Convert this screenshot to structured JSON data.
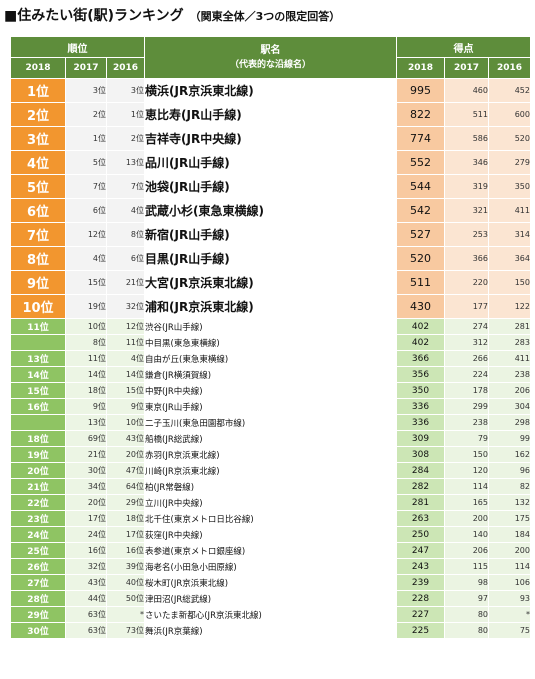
{
  "title": {
    "main": "■住みたい街(駅)ランキング",
    "sub": "（関東全体／3つの限定回答）"
  },
  "headers": {
    "rank_group": "順位",
    "station": "駅名",
    "station_sub": "（代表的な沿線名）",
    "score_group": "得点",
    "years": [
      "2018",
      "2017",
      "2016"
    ]
  },
  "top_rows": [
    {
      "r18": "1位",
      "r17": "3位",
      "r16": "3位",
      "station": "横浜(JR京浜東北線)",
      "s18": "995",
      "s17": "460",
      "s16": "452"
    },
    {
      "r18": "2位",
      "r17": "2位",
      "r16": "1位",
      "station": "恵比寿(JR山手線)",
      "s18": "822",
      "s17": "511",
      "s16": "600"
    },
    {
      "r18": "3位",
      "r17": "1位",
      "r16": "2位",
      "station": "吉祥寺(JR中央線)",
      "s18": "774",
      "s17": "586",
      "s16": "520"
    },
    {
      "r18": "4位",
      "r17": "5位",
      "r16": "13位",
      "station": "品川(JR山手線)",
      "s18": "552",
      "s17": "346",
      "s16": "279"
    },
    {
      "r18": "5位",
      "r17": "7位",
      "r16": "7位",
      "station": "池袋(JR山手線)",
      "s18": "544",
      "s17": "319",
      "s16": "350"
    },
    {
      "r18": "6位",
      "r17": "6位",
      "r16": "4位",
      "station": "武蔵小杉(東急東横線)",
      "s18": "542",
      "s17": "321",
      "s16": "411"
    },
    {
      "r18": "7位",
      "r17": "12位",
      "r16": "8位",
      "station": "新宿(JR山手線)",
      "s18": "527",
      "s17": "253",
      "s16": "314"
    },
    {
      "r18": "8位",
      "r17": "4位",
      "r16": "6位",
      "station": "目黒(JR山手線)",
      "s18": "520",
      "s17": "366",
      "s16": "364"
    },
    {
      "r18": "9位",
      "r17": "15位",
      "r16": "21位",
      "station": "大宮(JR京浜東北線)",
      "s18": "511",
      "s17": "220",
      "s16": "150"
    },
    {
      "r18": "10位",
      "r17": "19位",
      "r16": "32位",
      "station": "浦和(JR京浜東北線)",
      "s18": "430",
      "s17": "177",
      "s16": "122"
    }
  ],
  "rows": [
    {
      "r18": "11位",
      "r17": "10位",
      "r16": "12位",
      "station": "渋谷(JR山手線)",
      "s18": "402",
      "s17": "274",
      "s16": "281"
    },
    {
      "r18": "",
      "r17": "8位",
      "r16": "11位",
      "station": "中目黒(東急東横線)",
      "s18": "402",
      "s17": "312",
      "s16": "283"
    },
    {
      "r18": "13位",
      "r17": "11位",
      "r16": "4位",
      "station": "自由が丘(東急東横線)",
      "s18": "366",
      "s17": "266",
      "s16": "411"
    },
    {
      "r18": "14位",
      "r17": "14位",
      "r16": "14位",
      "station": "鎌倉(JR横須賀線)",
      "s18": "356",
      "s17": "224",
      "s16": "238"
    },
    {
      "r18": "15位",
      "r17": "18位",
      "r16": "15位",
      "station": "中野(JR中央線)",
      "s18": "350",
      "s17": "178",
      "s16": "206"
    },
    {
      "r18": "16位",
      "r17": "9位",
      "r16": "9位",
      "station": "東京(JR山手線)",
      "s18": "336",
      "s17": "299",
      "s16": "304"
    },
    {
      "r18": "",
      "r17": "13位",
      "r16": "10位",
      "station": "二子玉川(東急田園都市線)",
      "s18": "336",
      "s17": "238",
      "s16": "298"
    },
    {
      "r18": "18位",
      "r17": "69位",
      "r16": "43位",
      "station": "船橋(JR総武線)",
      "s18": "309",
      "s17": "79",
      "s16": "99"
    },
    {
      "r18": "19位",
      "r17": "21位",
      "r16": "20位",
      "station": "赤羽(JR京浜東北線)",
      "s18": "308",
      "s17": "150",
      "s16": "162"
    },
    {
      "r18": "20位",
      "r17": "30位",
      "r16": "47位",
      "station": "川崎(JR京浜東北線)",
      "s18": "284",
      "s17": "120",
      "s16": "96"
    },
    {
      "r18": "21位",
      "r17": "34位",
      "r16": "64位",
      "station": "柏(JR常磐線)",
      "s18": "282",
      "s17": "114",
      "s16": "82"
    },
    {
      "r18": "22位",
      "r17": "20位",
      "r16": "29位",
      "station": "立川(JR中央線)",
      "s18": "281",
      "s17": "165",
      "s16": "132"
    },
    {
      "r18": "23位",
      "r17": "17位",
      "r16": "18位",
      "station": "北千住(東京メトロ日比谷線)",
      "s18": "263",
      "s17": "200",
      "s16": "175"
    },
    {
      "r18": "24位",
      "r17": "24位",
      "r16": "17位",
      "station": "荻窪(JR中央線)",
      "s18": "250",
      "s17": "140",
      "s16": "184"
    },
    {
      "r18": "25位",
      "r17": "16位",
      "r16": "16位",
      "station": "表参道(東京メトロ銀座線)",
      "s18": "247",
      "s17": "206",
      "s16": "200"
    },
    {
      "r18": "26位",
      "r17": "32位",
      "r16": "39位",
      "station": "海老名(小田急小田原線)",
      "s18": "243",
      "s17": "115",
      "s16": "114"
    },
    {
      "r18": "27位",
      "r17": "43位",
      "r16": "40位",
      "station": "桜木町(JR京浜東北線)",
      "s18": "239",
      "s17": "98",
      "s16": "106"
    },
    {
      "r18": "28位",
      "r17": "44位",
      "r16": "50位",
      "station": "津田沼(JR総武線)",
      "s18": "228",
      "s17": "97",
      "s16": "93"
    },
    {
      "r18": "29位",
      "r17": "63位",
      "r16": "*",
      "station": "さいたま新都心(JR京浜東北線)",
      "s18": "227",
      "s17": "80",
      "s16": "*"
    },
    {
      "r18": "30位",
      "r17": "63位",
      "r16": "73位",
      "station": "舞浜(JR京葉線)",
      "s18": "225",
      "s17": "80",
      "s16": "75"
    }
  ]
}
